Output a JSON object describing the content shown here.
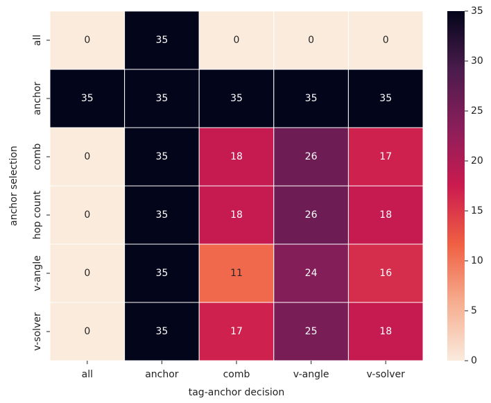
{
  "chart_data": {
    "type": "heatmap",
    "xlabel": "tag-anchor decision",
    "ylabel": "anchor selection",
    "x": [
      "all",
      "anchor",
      "comb",
      "v-angle",
      "v-solver"
    ],
    "y": [
      "all",
      "anchor",
      "comb",
      "hop count",
      "v-angle",
      "v-solver"
    ],
    "values": [
      [
        0,
        35,
        0,
        0,
        0
      ],
      [
        35,
        35,
        35,
        35,
        35
      ],
      [
        0,
        35,
        18,
        26,
        17
      ],
      [
        0,
        35,
        18,
        26,
        18
      ],
      [
        0,
        35,
        11,
        24,
        16
      ],
      [
        0,
        35,
        17,
        25,
        18
      ]
    ],
    "zlim": [
      0,
      35
    ],
    "zticks": [
      0,
      5,
      10,
      15,
      20,
      25,
      30,
      35
    ],
    "colormap": [
      "#faebdd",
      "#f6ad8f",
      "#f06043",
      "#cb1b4f",
      "#8a1e5a",
      "#4a1c4c",
      "#03051a"
    ]
  }
}
